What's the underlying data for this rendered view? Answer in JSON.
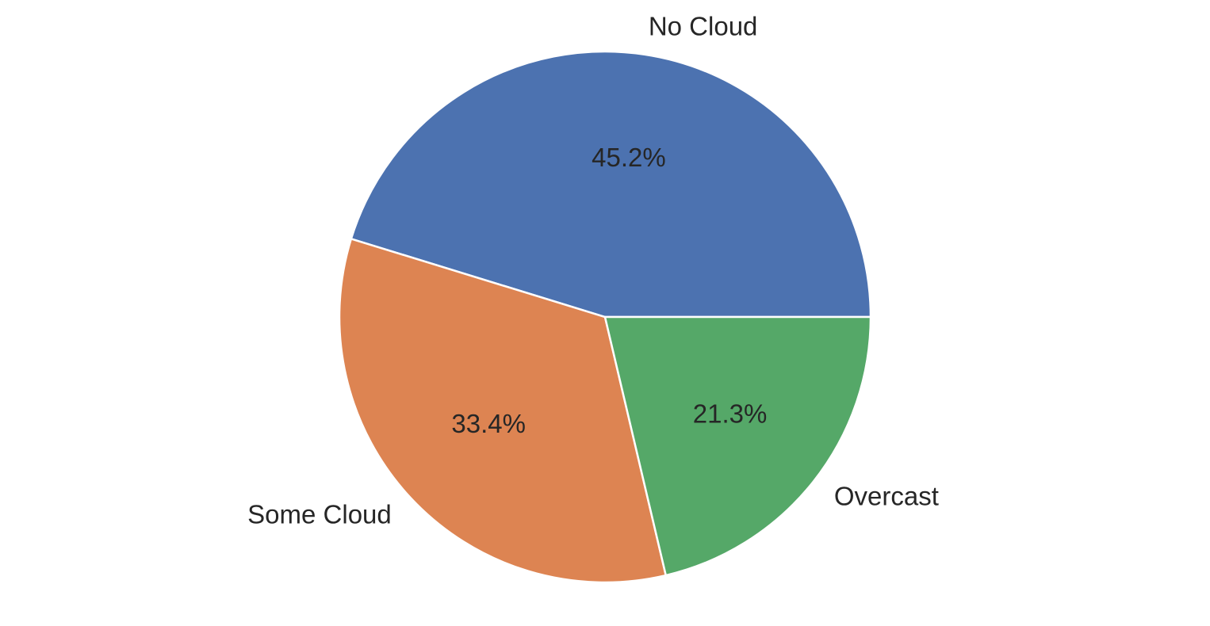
{
  "chart_data": {
    "type": "pie",
    "categories": [
      "No Cloud",
      "Some Cloud",
      "Overcast"
    ],
    "values": [
      45.2,
      33.4,
      21.3
    ],
    "value_labels": [
      "45.2%",
      "33.4%",
      "21.3%"
    ],
    "colors": [
      "#4c72b0",
      "#dd8452",
      "#55a868"
    ]
  }
}
